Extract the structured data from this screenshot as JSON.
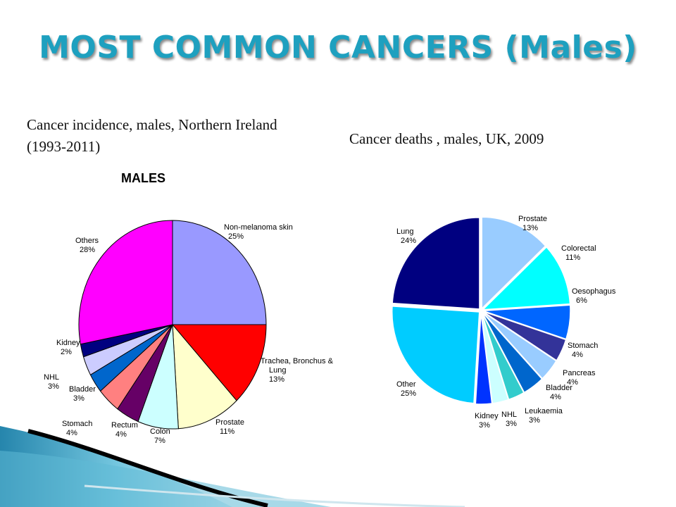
{
  "slide": {
    "title": "MOST COMMON CANCERS (Males)",
    "left_subtitle": "Cancer incidence, males, Northern Ireland (1993-2011)",
    "right_subtitle": "Cancer deaths , males, UK, 2009"
  },
  "colors": {
    "title": "#1ea0bf"
  },
  "chart_data": [
    {
      "type": "pie",
      "title": "MALES",
      "slices": [
        {
          "label": [
            "Non-melanoma skin",
            "25%"
          ],
          "value": 25,
          "color": "#9999ff"
        },
        {
          "label": [
            "Trachea, Bronchus &",
            "Lung",
            "13%"
          ],
          "value": 13,
          "color": "#ff0000"
        },
        {
          "label": [
            "Prostate",
            "11%"
          ],
          "value": 11,
          "color": "#ffffcc"
        },
        {
          "label": [
            "Colon",
            "7%"
          ],
          "value": 7,
          "color": "#ccffff"
        },
        {
          "label": [
            "Rectum",
            "4%"
          ],
          "value": 4,
          "color": "#660066"
        },
        {
          "label": [
            "Stomach",
            "4%"
          ],
          "value": 4,
          "color": "#ff8080"
        },
        {
          "label": [
            "Bladder",
            "3%"
          ],
          "value": 3,
          "color": "#0066cc"
        },
        {
          "label": [
            "NHL",
            "3%"
          ],
          "value": 3,
          "color": "#ccccff"
        },
        {
          "label": [
            "Kidney",
            "2%"
          ],
          "value": 2,
          "color": "#000080"
        },
        {
          "label": [
            "Others",
            "28%"
          ],
          "value": 28,
          "color": "#ff00ff"
        }
      ]
    },
    {
      "type": "pie",
      "title": "",
      "slices": [
        {
          "label": [
            "Prostate",
            "13%"
          ],
          "value": 13,
          "color": "#99ccff"
        },
        {
          "label": [
            "Colorectal",
            "11%"
          ],
          "value": 11,
          "color": "#00ffff"
        },
        {
          "label": [
            "Oesophagus",
            "6%"
          ],
          "value": 6,
          "color": "#0066ff"
        },
        {
          "label": [
            "Stomach",
            "4%"
          ],
          "value": 4,
          "color": "#333399"
        },
        {
          "label": [
            "Pancreas",
            "4%"
          ],
          "value": 4,
          "color": "#99ccff"
        },
        {
          "label": [
            "Bladder",
            "4%"
          ],
          "value": 4,
          "color": "#0066cc"
        },
        {
          "label": [
            "Leukaemia",
            "3%"
          ],
          "value": 3,
          "color": "#33cccc"
        },
        {
          "label": [
            "NHL",
            "3%"
          ],
          "value": 3,
          "color": "#ccffff"
        },
        {
          "label": [
            "Kidney",
            "3%"
          ],
          "value": 3,
          "color": "#0033ff"
        },
        {
          "label": [
            "Other",
            "25%"
          ],
          "value": 25,
          "color": "#00ccff"
        },
        {
          "label": [
            "Lung",
            "24%"
          ],
          "value": 24,
          "color": "#000080"
        }
      ]
    }
  ]
}
